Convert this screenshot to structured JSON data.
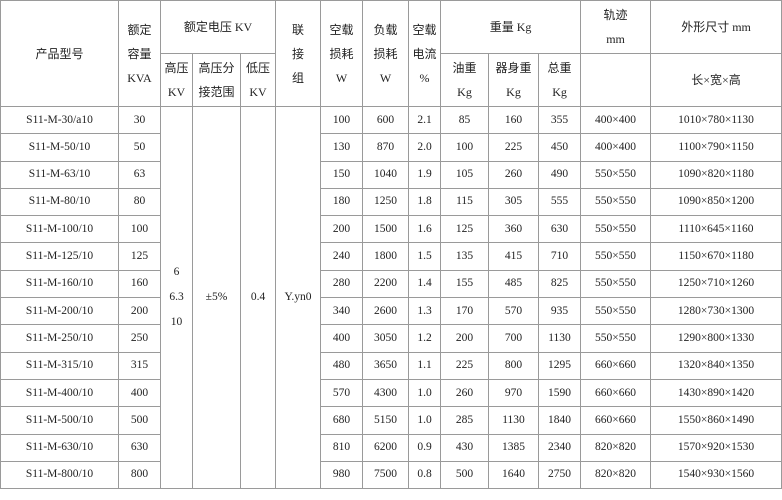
{
  "header": {
    "model": "产品型号",
    "capacity": [
      "额定",
      "容量",
      "KVA"
    ],
    "rated_voltage": "额定电压 KV",
    "hv": [
      "高压",
      "KV"
    ],
    "tap_range": [
      "高压分",
      "接范围"
    ],
    "lv": [
      "低压",
      "KV"
    ],
    "connection": [
      "联",
      "接",
      "组"
    ],
    "no_load_loss": [
      "空载",
      "损耗",
      "W"
    ],
    "load_loss": [
      "负载",
      "损耗",
      "W"
    ],
    "no_load_current": [
      "空载",
      "电流",
      "%"
    ],
    "weight": "重量 Kg",
    "oil_weight": [
      "油重",
      "Kg"
    ],
    "body_weight": [
      "器身重",
      "Kg"
    ],
    "total_weight": [
      "总重",
      "Kg"
    ],
    "gauge": [
      "轨迹",
      "mm"
    ],
    "dimensions": "外形尺寸 mm",
    "dimensions_sub": "长×宽×高"
  },
  "shared": {
    "hv_values": [
      "6",
      "6.3",
      "10"
    ],
    "tap_range": "±5%",
    "lv": "0.4",
    "connection": "Y.yn0"
  },
  "rows": [
    {
      "model": "S11-M-30/a10",
      "kva": "30",
      "p0": "100",
      "pk": "600",
      "i0": "2.1",
      "oil": "85",
      "body": "160",
      "total": "355",
      "gauge": "400×400",
      "dims": "1010×780×1130"
    },
    {
      "model": "S11-M-50/10",
      "kva": "50",
      "p0": "130",
      "pk": "870",
      "i0": "2.0",
      "oil": "100",
      "body": "225",
      "total": "450",
      "gauge": "400×400",
      "dims": "1100×790×1150"
    },
    {
      "model": "S11-M-63/10",
      "kva": "63",
      "p0": "150",
      "pk": "1040",
      "i0": "1.9",
      "oil": "105",
      "body": "260",
      "total": "490",
      "gauge": "550×550",
      "dims": "1090×820×1180"
    },
    {
      "model": "S11-M-80/10",
      "kva": "80",
      "p0": "180",
      "pk": "1250",
      "i0": "1.8",
      "oil": "115",
      "body": "305",
      "total": "555",
      "gauge": "550×550",
      "dims": "1090×850×1200"
    },
    {
      "model": "S11-M-100/10",
      "kva": "100",
      "p0": "200",
      "pk": "1500",
      "i0": "1.6",
      "oil": "125",
      "body": "360",
      "total": "630",
      "gauge": "550×550",
      "dims": "1110×645×1160"
    },
    {
      "model": "S11-M-125/10",
      "kva": "125",
      "p0": "240",
      "pk": "1800",
      "i0": "1.5",
      "oil": "135",
      "body": "415",
      "total": "710",
      "gauge": "550×550",
      "dims": "1150×670×1180"
    },
    {
      "model": "S11-M-160/10",
      "kva": "160",
      "p0": "280",
      "pk": "2200",
      "i0": "1.4",
      "oil": "155",
      "body": "485",
      "total": "825",
      "gauge": "550×550",
      "dims": "1250×710×1260"
    },
    {
      "model": "S11-M-200/10",
      "kva": "200",
      "p0": "340",
      "pk": "2600",
      "i0": "1.3",
      "oil": "170",
      "body": "570",
      "total": "935",
      "gauge": "550×550",
      "dims": "1280×730×1300"
    },
    {
      "model": "S11-M-250/10",
      "kva": "250",
      "p0": "400",
      "pk": "3050",
      "i0": "1.2",
      "oil": "200",
      "body": "700",
      "total": "1130",
      "gauge": "550×550",
      "dims": "1290×800×1330"
    },
    {
      "model": "S11-M-315/10",
      "kva": "315",
      "p0": "480",
      "pk": "3650",
      "i0": "1.1",
      "oil": "225",
      "body": "800",
      "total": "1295",
      "gauge": "660×660",
      "dims": "1320×840×1350"
    },
    {
      "model": "S11-M-400/10",
      "kva": "400",
      "p0": "570",
      "pk": "4300",
      "i0": "1.0",
      "oil": "260",
      "body": "970",
      "total": "1590",
      "gauge": "660×660",
      "dims": "1430×890×1420"
    },
    {
      "model": "S11-M-500/10",
      "kva": "500",
      "p0": "680",
      "pk": "5150",
      "i0": "1.0",
      "oil": "285",
      "body": "1130",
      "total": "1840",
      "gauge": "660×660",
      "dims": "1550×860×1490"
    },
    {
      "model": "S11-M-630/10",
      "kva": "630",
      "p0": "810",
      "pk": "6200",
      "i0": "0.9",
      "oil": "430",
      "body": "1385",
      "total": "2340",
      "gauge": "820×820",
      "dims": "1570×920×1530"
    },
    {
      "model": "S11-M-800/10",
      "kva": "800",
      "p0": "980",
      "pk": "7500",
      "i0": "0.8",
      "oil": "500",
      "body": "1640",
      "total": "2750",
      "gauge": "820×820",
      "dims": "1540×930×1560"
    }
  ]
}
